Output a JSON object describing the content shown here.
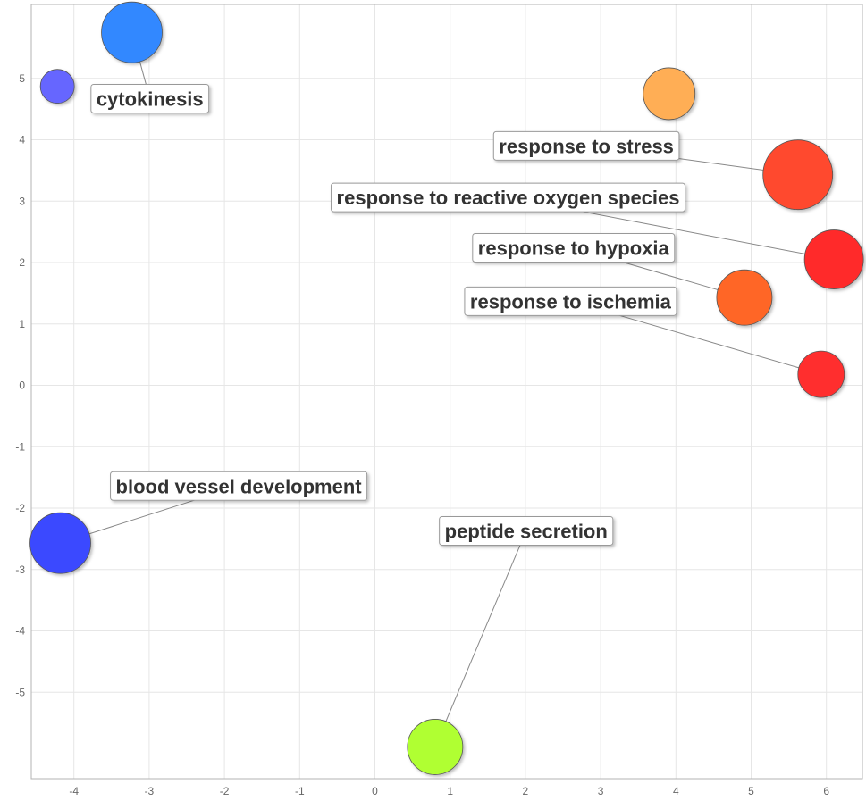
{
  "chart_data": {
    "type": "scatter",
    "xlim": [
      -4.6,
      6.5
    ],
    "ylim": [
      -6.2,
      6.2
    ],
    "x_ticks": [
      -4,
      -3,
      -2,
      -1,
      0,
      1,
      2,
      3,
      4,
      5,
      6
    ],
    "y_ticks": [
      -5,
      -4,
      -3,
      -2,
      -1,
      0,
      1,
      2,
      3,
      4,
      5
    ],
    "grid": true,
    "points": [
      {
        "x": -3.23,
        "y": 5.75,
        "color": "#3388ff",
        "label": "cytokinesis",
        "label_x": -2.99,
        "label_y": 4.67
      },
      {
        "x": -4.22,
        "y": 4.87,
        "color": "#6666ff",
        "label": ""
      },
      {
        "x": 3.91,
        "y": 4.75,
        "color": "#ffae55",
        "label": ""
      },
      {
        "x": 5.62,
        "y": 3.43,
        "color": "#ff4a2e",
        "label": "response to stress",
        "label_x": 2.81,
        "label_y": 3.9
      },
      {
        "x": 6.1,
        "y": 2.05,
        "color": "#ff2b2b",
        "label": "response to reactive oxygen species",
        "label_x": 1.77,
        "label_y": 3.06
      },
      {
        "x": 4.91,
        "y": 1.43,
        "color": "#ff6626",
        "label": "response to hypoxia",
        "label_x": 2.64,
        "label_y": 2.24
      },
      {
        "x": 5.93,
        "y": 0.18,
        "color": "#ff2e2e",
        "label": "response to ischemia",
        "label_x": 2.6,
        "label_y": 1.37
      },
      {
        "x": -4.18,
        "y": -2.57,
        "color": "#3a4aff",
        "label": "blood vessel development",
        "label_x": -1.81,
        "label_y": -1.64
      },
      {
        "x": 0.8,
        "y": -5.89,
        "color": "#b0ff33",
        "label": "peptide secretion",
        "label_x": 2.01,
        "label_y": -2.37
      }
    ]
  }
}
